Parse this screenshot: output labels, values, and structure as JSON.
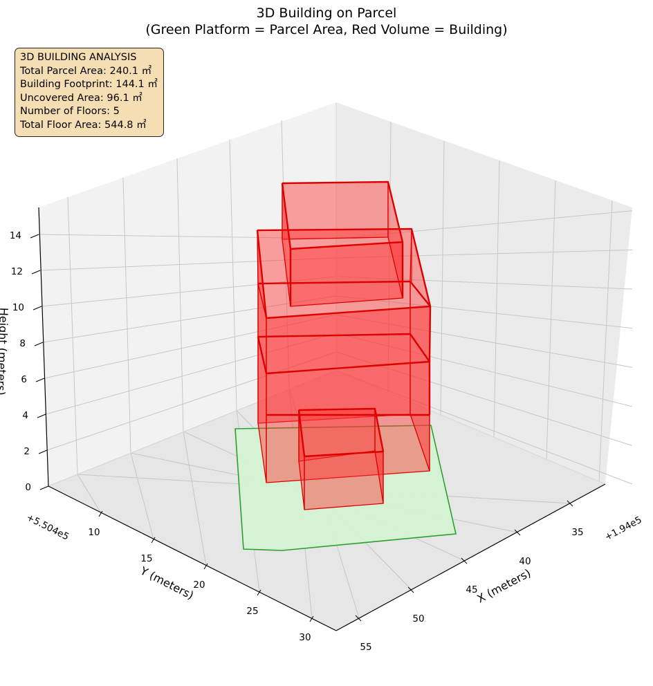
{
  "chart_data": {
    "type": "3d-polygons",
    "title": "3D Building on Parcel",
    "subtitle": "(Green Platform = Parcel Area, Red Volume = Building)",
    "xlabel": "X (meters)",
    "ylabel": "Y (meters)",
    "zlabel": "Height (meters)",
    "x_offset_label": "+1.94e5",
    "y_offset_label": "+5.504e5",
    "x_ticks": [
      "35",
      "40",
      "45",
      "50",
      "55"
    ],
    "y_ticks": [
      "10",
      "15",
      "20",
      "25",
      "30"
    ],
    "z_ticks": [
      "0",
      "2",
      "4",
      "6",
      "8",
      "10",
      "12",
      "14"
    ],
    "parcel_color": "#2ca02c",
    "parcel_fill": "#d4f2d4",
    "building_edge_color": "#dd0000",
    "building_fill": "#ff3333",
    "building_fill_opacity": 0.45
  },
  "info_box": {
    "lines": [
      "3D BUILDING ANALYSIS",
      "Total Parcel Area: 240.1 ㎡",
      "Building Footprint: 144.1 ㎡",
      "Uncovered Area: 96.1 ㎡",
      "Number of Floors: 5",
      "Total Floor Area: 544.8 ㎡"
    ],
    "background": "#f5deb3"
  }
}
